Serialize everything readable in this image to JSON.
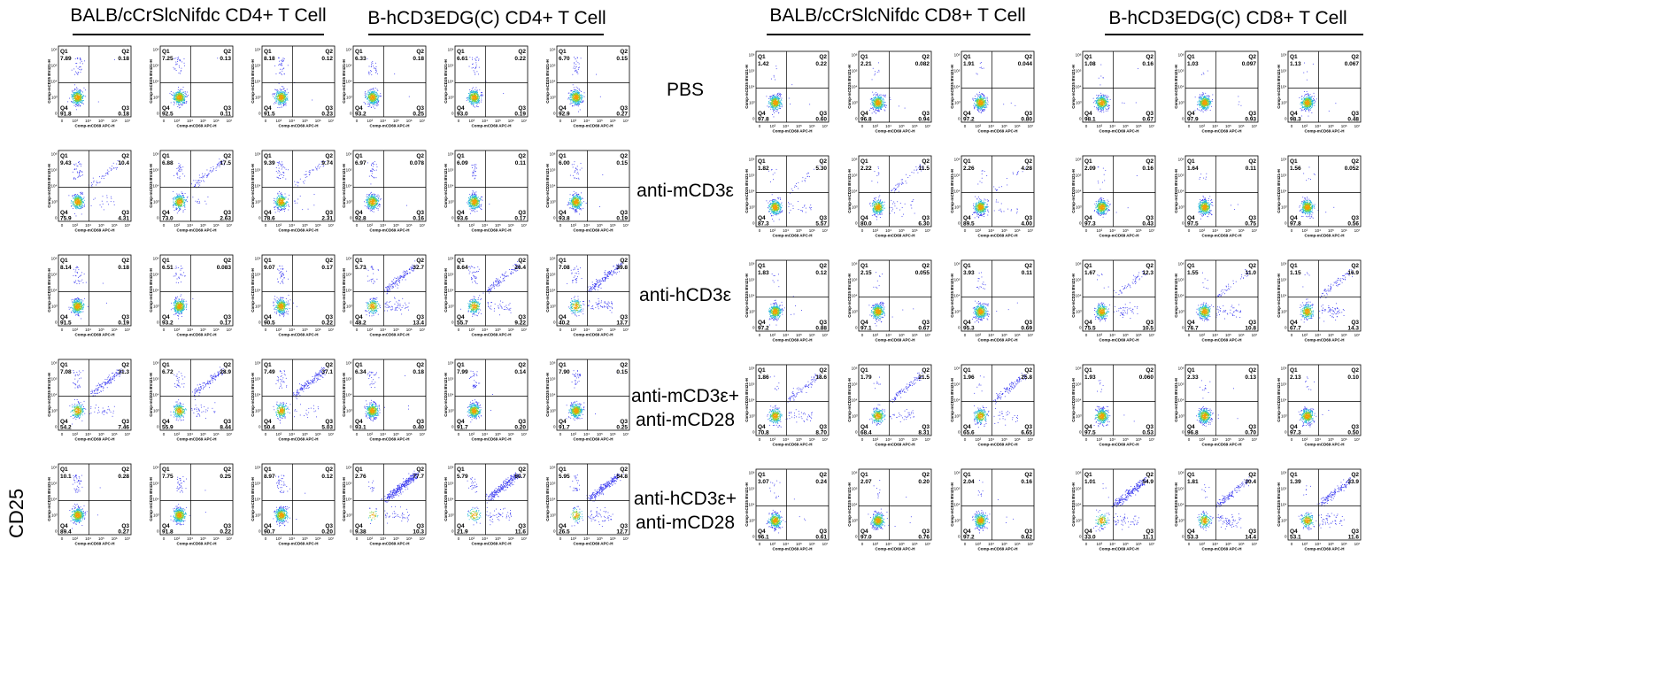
{
  "group_titles": [
    "BALB/cCrSlcNifdc CD4+ T Cell",
    "B-hCD3EDG(C) CD4+ T Cell",
    "BALB/cCrSlcNifdc CD8+ T Cell",
    "B-hCD3EDG(C) CD8+ T Cell"
  ],
  "row_labels": [
    [
      "PBS"
    ],
    [
      "anti-mCD3ε"
    ],
    [
      "anti-hCD3ε"
    ],
    [
      "anti-mCD3ε+",
      "anti-mCD28"
    ],
    [
      "anti-hCD3ε+",
      "anti-mCD28"
    ]
  ],
  "side_label": "CD25",
  "axis": {
    "xlabel": "Comp-mCD69 APC-H",
    "ylabel": "Comp-mCD25 BV421-H",
    "x_ticks": [
      "0",
      "10³",
      "10⁴",
      "10⁵",
      "10⁶",
      "10⁷"
    ],
    "y_ticks": [
      "0",
      "10³",
      "10⁴",
      "10⁵",
      "10⁶"
    ],
    "quadrant_names": [
      "Q1",
      "Q2",
      "Q3",
      "Q4"
    ]
  },
  "chart_data": {
    "type": "scatter",
    "description_kind": "flow-cytometry-quadrant-grid",
    "xlabel": "Comp-mCD69 APC-H",
    "ylabel": "Comp-mCD25 BV421-H",
    "panels": [
      {
        "row": 0,
        "col": 0,
        "Q1": "7.89",
        "Q2": "0.18",
        "Q3": "0.18",
        "Q4": "91.8"
      },
      {
        "row": 0,
        "col": 1,
        "Q1": "7.25",
        "Q2": "0.13",
        "Q3": "0.11",
        "Q4": "92.5"
      },
      {
        "row": 0,
        "col": 2,
        "Q1": "8.18",
        "Q2": "0.12",
        "Q3": "0.23",
        "Q4": "91.5"
      },
      {
        "row": 0,
        "col": 3,
        "Q1": "6.33",
        "Q2": "0.18",
        "Q3": "0.25",
        "Q4": "93.2"
      },
      {
        "row": 0,
        "col": 4,
        "Q1": "6.61",
        "Q2": "0.22",
        "Q3": "0.19",
        "Q4": "93.0"
      },
      {
        "row": 0,
        "col": 5,
        "Q1": "6.70",
        "Q2": "0.15",
        "Q3": "0.27",
        "Q4": "92.9"
      },
      {
        "row": 0,
        "col": 6,
        "Q1": "1.42",
        "Q2": "0.22",
        "Q3": "0.60",
        "Q4": "97.8"
      },
      {
        "row": 0,
        "col": 7,
        "Q1": "2.21",
        "Q2": "0.082",
        "Q3": "0.94",
        "Q4": "96.8"
      },
      {
        "row": 0,
        "col": 8,
        "Q1": "1.91",
        "Q2": "0.044",
        "Q3": "0.80",
        "Q4": "97.2"
      },
      {
        "row": 0,
        "col": 9,
        "Q1": "1.08",
        "Q2": "0.16",
        "Q3": "0.67",
        "Q4": "98.1"
      },
      {
        "row": 0,
        "col": 10,
        "Q1": "1.03",
        "Q2": "0.097",
        "Q3": "0.93",
        "Q4": "97.9"
      },
      {
        "row": 0,
        "col": 11,
        "Q1": "1.13",
        "Q2": "0.067",
        "Q3": "0.48",
        "Q4": "98.3"
      },
      {
        "row": 1,
        "col": 0,
        "Q1": "9.43",
        "Q2": "10.4",
        "Q3": "4.31",
        "Q4": "75.9"
      },
      {
        "row": 1,
        "col": 1,
        "Q1": "6.88",
        "Q2": "17.5",
        "Q3": "2.63",
        "Q4": "73.0"
      },
      {
        "row": 1,
        "col": 2,
        "Q1": "9.39",
        "Q2": "9.74",
        "Q3": "2.31",
        "Q4": "78.6"
      },
      {
        "row": 1,
        "col": 3,
        "Q1": "6.97",
        "Q2": "0.078",
        "Q3": "0.16",
        "Q4": "92.8"
      },
      {
        "row": 1,
        "col": 4,
        "Q1": "6.09",
        "Q2": "0.11",
        "Q3": "0.17",
        "Q4": "93.6"
      },
      {
        "row": 1,
        "col": 5,
        "Q1": "6.00",
        "Q2": "0.15",
        "Q3": "0.19",
        "Q4": "93.8"
      },
      {
        "row": 1,
        "col": 6,
        "Q1": "1.82",
        "Q2": "5.30",
        "Q3": "5.57",
        "Q4": "87.3"
      },
      {
        "row": 1,
        "col": 7,
        "Q1": "2.22",
        "Q2": "11.5",
        "Q3": "6.30",
        "Q4": "80.0"
      },
      {
        "row": 1,
        "col": 8,
        "Q1": "2.26",
        "Q2": "4.28",
        "Q3": "4.00",
        "Q4": "89.5"
      },
      {
        "row": 1,
        "col": 9,
        "Q1": "2.09",
        "Q2": "0.16",
        "Q3": "0.43",
        "Q4": "97.3"
      },
      {
        "row": 1,
        "col": 10,
        "Q1": "1.64",
        "Q2": "0.11",
        "Q3": "0.75",
        "Q4": "97.5"
      },
      {
        "row": 1,
        "col": 11,
        "Q1": "1.56",
        "Q2": "0.052",
        "Q3": "0.56",
        "Q4": "97.8"
      },
      {
        "row": 2,
        "col": 0,
        "Q1": "8.14",
        "Q2": "0.18",
        "Q3": "0.19",
        "Q4": "91.5"
      },
      {
        "row": 2,
        "col": 1,
        "Q1": "6.51",
        "Q2": "0.083",
        "Q3": "0.17",
        "Q4": "93.2"
      },
      {
        "row": 2,
        "col": 2,
        "Q1": "9.07",
        "Q2": "0.17",
        "Q3": "0.22",
        "Q4": "90.5"
      },
      {
        "row": 2,
        "col": 3,
        "Q1": "5.73",
        "Q2": "32.7",
        "Q3": "13.4",
        "Q4": "48.2"
      },
      {
        "row": 2,
        "col": 4,
        "Q1": "8.64",
        "Q2": "26.4",
        "Q3": "9.22",
        "Q4": "55.7"
      },
      {
        "row": 2,
        "col": 5,
        "Q1": "7.08",
        "Q2": "39.8",
        "Q3": "13.7",
        "Q4": "40.2"
      },
      {
        "row": 2,
        "col": 6,
        "Q1": "1.83",
        "Q2": "0.12",
        "Q3": "0.88",
        "Q4": "97.2"
      },
      {
        "row": 2,
        "col": 7,
        "Q1": "2.15",
        "Q2": "0.055",
        "Q3": "0.67",
        "Q4": "97.1"
      },
      {
        "row": 2,
        "col": 8,
        "Q1": "3.93",
        "Q2": "0.11",
        "Q3": "0.69",
        "Q4": "95.3"
      },
      {
        "row": 2,
        "col": 9,
        "Q1": "1.67",
        "Q2": "12.3",
        "Q3": "10.5",
        "Q4": "75.5"
      },
      {
        "row": 2,
        "col": 10,
        "Q1": "1.55",
        "Q2": "11.0",
        "Q3": "10.8",
        "Q4": "76.7"
      },
      {
        "row": 2,
        "col": 11,
        "Q1": "1.15",
        "Q2": "16.9",
        "Q3": "14.3",
        "Q4": "67.7"
      },
      {
        "row": 3,
        "col": 0,
        "Q1": "7.08",
        "Q2": "31.3",
        "Q3": "7.46",
        "Q4": "54.2"
      },
      {
        "row": 3,
        "col": 1,
        "Q1": "6.72",
        "Q2": "28.9",
        "Q3": "8.44",
        "Q4": "55.9"
      },
      {
        "row": 3,
        "col": 2,
        "Q1": "7.49",
        "Q2": "37.1",
        "Q3": "5.03",
        "Q4": "50.4"
      },
      {
        "row": 3,
        "col": 3,
        "Q1": "6.34",
        "Q2": "0.18",
        "Q3": "0.40",
        "Q4": "93.1"
      },
      {
        "row": 3,
        "col": 4,
        "Q1": "7.99",
        "Q2": "0.14",
        "Q3": "0.20",
        "Q4": "91.7"
      },
      {
        "row": 3,
        "col": 5,
        "Q1": "7.90",
        "Q2": "0.15",
        "Q3": "0.25",
        "Q4": "91.7"
      },
      {
        "row": 3,
        "col": 6,
        "Q1": "1.86",
        "Q2": "18.6",
        "Q3": "8.70",
        "Q4": "70.8"
      },
      {
        "row": 3,
        "col": 7,
        "Q1": "1.79",
        "Q2": "21.5",
        "Q3": "8.31",
        "Q4": "68.4"
      },
      {
        "row": 3,
        "col": 8,
        "Q1": "1.96",
        "Q2": "25.8",
        "Q3": "6.65",
        "Q4": "65.6"
      },
      {
        "row": 3,
        "col": 9,
        "Q1": "1.93",
        "Q2": "0.060",
        "Q3": "0.53",
        "Q4": "97.5"
      },
      {
        "row": 3,
        "col": 10,
        "Q1": "2.33",
        "Q2": "0.13",
        "Q3": "0.70",
        "Q4": "96.8"
      },
      {
        "row": 3,
        "col": 11,
        "Q1": "2.13",
        "Q2": "0.10",
        "Q3": "0.50",
        "Q4": "97.3"
      },
      {
        "row": 4,
        "col": 0,
        "Q1": "10.1",
        "Q2": "0.28",
        "Q3": "0.27",
        "Q4": "89.4"
      },
      {
        "row": 4,
        "col": 1,
        "Q1": "7.75",
        "Q2": "0.25",
        "Q3": "0.22",
        "Q4": "91.8"
      },
      {
        "row": 4,
        "col": 2,
        "Q1": "8.97",
        "Q2": "0.12",
        "Q3": "0.20",
        "Q4": "90.7"
      },
      {
        "row": 4,
        "col": 3,
        "Q1": "2.76",
        "Q2": "77.7",
        "Q3": "10.3",
        "Q4": "9.38"
      },
      {
        "row": 4,
        "col": 4,
        "Q1": "5.79",
        "Q2": "60.7",
        "Q3": "11.6",
        "Q4": "21.9"
      },
      {
        "row": 4,
        "col": 5,
        "Q1": "5.95",
        "Q2": "54.8",
        "Q3": "12.7",
        "Q4": "26.5"
      },
      {
        "row": 4,
        "col": 6,
        "Q1": "3.07",
        "Q2": "0.24",
        "Q3": "0.61",
        "Q4": "96.1"
      },
      {
        "row": 4,
        "col": 7,
        "Q1": "2.07",
        "Q2": "0.20",
        "Q3": "0.76",
        "Q4": "97.0"
      },
      {
        "row": 4,
        "col": 8,
        "Q1": "2.04",
        "Q2": "0.16",
        "Q3": "0.62",
        "Q4": "97.2"
      },
      {
        "row": 4,
        "col": 9,
        "Q1": "1.01",
        "Q2": "54.9",
        "Q3": "11.1",
        "Q4": "33.0"
      },
      {
        "row": 4,
        "col": 10,
        "Q1": "1.81",
        "Q2": "30.4",
        "Q3": "14.4",
        "Q4": "53.3"
      },
      {
        "row": 4,
        "col": 11,
        "Q1": "1.39",
        "Q2": "33.9",
        "Q3": "11.6",
        "Q4": "53.1"
      }
    ]
  }
}
